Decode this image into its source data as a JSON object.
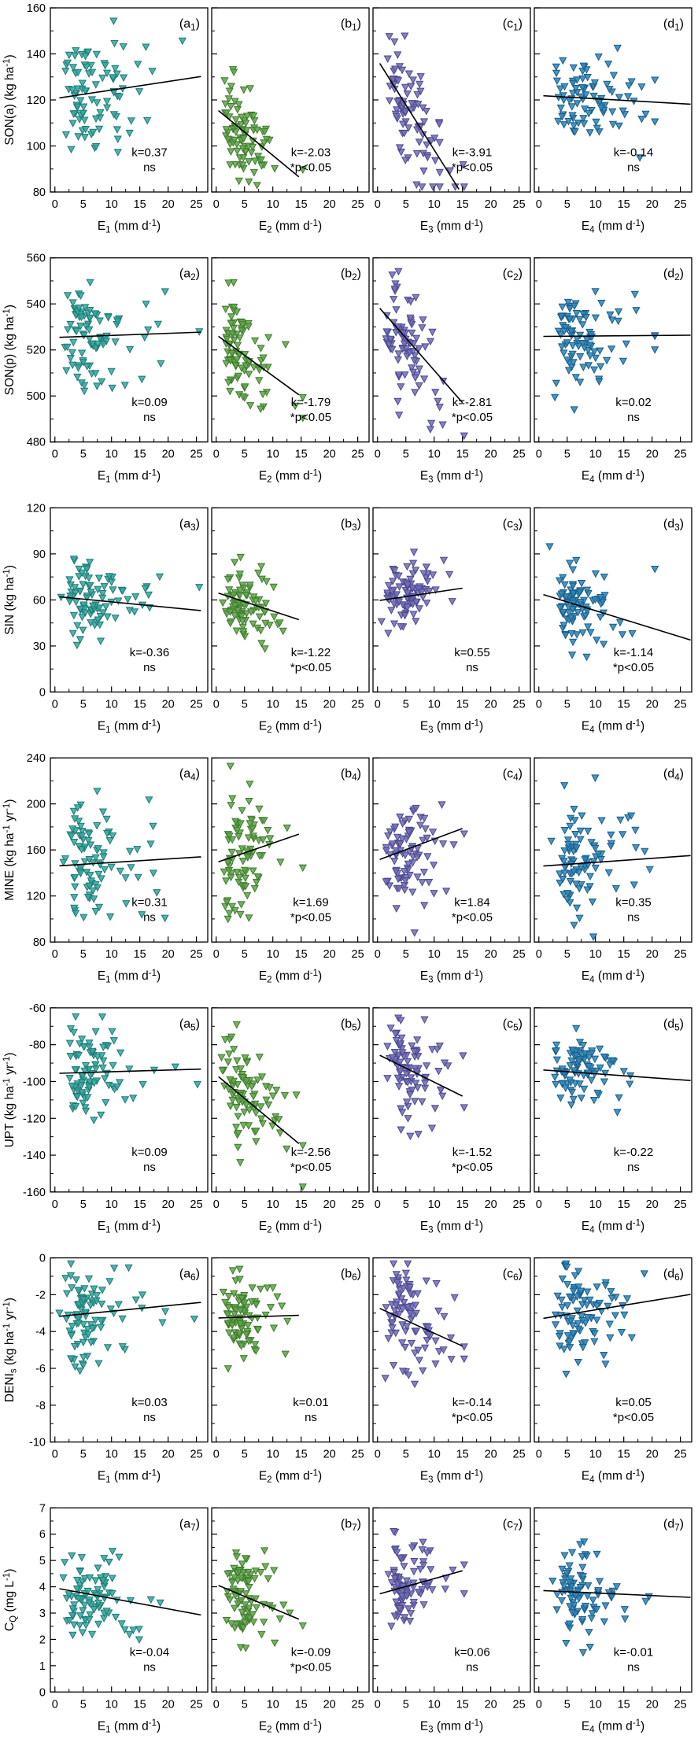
{
  "chart_data": {
    "type": "scatter",
    "description": "7x4 grid of scatter panels with downward-triangle markers and linear regression lines; slope k and significance shown per panel",
    "grid": {
      "rows": 7,
      "cols": 4
    },
    "x_axis": {
      "domain": [
        -0.8,
        27
      ],
      "ticks": [
        0,
        5,
        10,
        15,
        20,
        25
      ],
      "minor_step": 2.5
    },
    "columns": [
      {
        "key": "E1",
        "color": "#35a8a1",
        "edge": "#1f7a75",
        "xlabel": [
          {
            "t": "E"
          },
          {
            "t": "1",
            "s": "sub"
          },
          {
            "t": " (mm d"
          },
          {
            "t": "-1",
            "s": "sup"
          },
          {
            "t": ")"
          }
        ],
        "x_mu": 1.85,
        "x_sd": 0.55,
        "x_max": 25.5,
        "line_span": [
          0.8,
          25.8
        ]
      },
      {
        "key": "E2",
        "color": "#61a64b",
        "edge": "#3f7a2e",
        "xlabel": [
          {
            "t": "E"
          },
          {
            "t": "2",
            "s": "sub"
          },
          {
            "t": " (mm d"
          },
          {
            "t": "-1",
            "s": "sup"
          },
          {
            "t": ")"
          }
        ],
        "x_mu": 1.5,
        "x_sd": 0.5,
        "x_max": 15.3,
        "line_span": [
          0.4,
          14.6
        ]
      },
      {
        "key": "E3",
        "color": "#7370b7",
        "edge": "#4c4890",
        "xlabel": [
          {
            "t": "E"
          },
          {
            "t": "3",
            "s": "sub"
          },
          {
            "t": " (mm d"
          },
          {
            "t": "-1",
            "s": "sup"
          },
          {
            "t": ")"
          }
        ],
        "x_mu": 1.65,
        "x_sd": 0.5,
        "x_max": 15.3,
        "line_span": [
          0.4,
          15.0
        ]
      },
      {
        "key": "E4",
        "color": "#2f86bb",
        "edge": "#1b5c87",
        "xlabel": [
          {
            "t": "E"
          },
          {
            "t": "4",
            "s": "sub"
          },
          {
            "t": " (mm d"
          },
          {
            "t": "-1",
            "s": "sup"
          },
          {
            "t": ")"
          }
        ],
        "x_mu": 2.0,
        "x_sd": 0.45,
        "x_max": 20.5,
        "line_span": [
          0.8,
          26.8
        ]
      }
    ],
    "rows": [
      {
        "ylabel": [
          {
            "t": "SON(a) (kg ha"
          },
          {
            "t": "-1",
            "s": "sup"
          },
          {
            "t": ")"
          }
        ],
        "ylim": [
          80,
          160
        ],
        "yticks": [
          80,
          100,
          120,
          140,
          160
        ]
      },
      {
        "ylabel": [
          {
            "t": "SON(p) (kg ha"
          },
          {
            "t": "-1",
            "s": "sup"
          },
          {
            "t": ")"
          }
        ],
        "ylim": [
          480,
          560
        ],
        "yticks": [
          480,
          500,
          520,
          540,
          560
        ]
      },
      {
        "ylabel": [
          {
            "t": "SIN (kg ha"
          },
          {
            "t": "-1",
            "s": "sup"
          },
          {
            "t": ")"
          }
        ],
        "ylim": [
          0,
          120
        ],
        "yticks": [
          0,
          30,
          60,
          90,
          120
        ]
      },
      {
        "ylabel": [
          {
            "t": "MINE (kg ha"
          },
          {
            "t": "-1",
            "s": "sup"
          },
          {
            "t": " yr"
          },
          {
            "t": "-1",
            "s": "sup"
          },
          {
            "t": ")"
          }
        ],
        "ylim": [
          80,
          240
        ],
        "yticks": [
          80,
          120,
          160,
          200,
          240
        ]
      },
      {
        "ylabel": [
          {
            "t": "UPT (kg ha"
          },
          {
            "t": "-1",
            "s": "sup"
          },
          {
            "t": " yr"
          },
          {
            "t": "-1",
            "s": "sup"
          },
          {
            "t": ")"
          }
        ],
        "ylim": [
          -160,
          -60
        ],
        "yticks": [
          -160,
          -140,
          -120,
          -100,
          -80,
          -60
        ]
      },
      {
        "ylabel": [
          {
            "t": "DENI"
          },
          {
            "t": "s",
            "s": "sub"
          },
          {
            "t": " (kg ha"
          },
          {
            "t": "-1",
            "s": "sup"
          },
          {
            "t": " yr"
          },
          {
            "t": "-1",
            "s": "sup"
          },
          {
            "t": ")"
          }
        ],
        "ylim": [
          -10,
          0
        ],
        "yticks": [
          -10,
          -8,
          -6,
          -4,
          -2,
          0
        ]
      },
      {
        "ylabel": [
          {
            "t": "C"
          },
          {
            "t": "Q",
            "s": "sub"
          },
          {
            "t": " (mg L"
          },
          {
            "t": "-1",
            "s": "sup"
          },
          {
            "t": ")"
          }
        ],
        "ylim": [
          0,
          7
        ],
        "yticks": [
          0,
          1,
          2,
          3,
          4,
          5,
          6,
          7
        ]
      }
    ],
    "panels": [
      {
        "id": "a1",
        "row": 0,
        "col": 0,
        "k": 0.37,
        "k_text": "k=0.37",
        "sig": "ns",
        "y_center": 123,
        "y_sd": 12,
        "n": 90,
        "seed": 101
      },
      {
        "id": "b1",
        "row": 0,
        "col": 1,
        "k": -2.03,
        "k_text": "k=-2.03",
        "sig": "*p<0.05",
        "y_center": 103,
        "y_sd": 10,
        "n": 88,
        "seed": 102
      },
      {
        "id": "c1",
        "row": 0,
        "col": 2,
        "k": -3.91,
        "k_text": "k=-3.91",
        "sig": "*p<0.05",
        "y_center": 112,
        "y_sd": 11,
        "n": 88,
        "seed": 103
      },
      {
        "id": "d1",
        "row": 0,
        "col": 3,
        "k": -0.14,
        "k_text": "k=-0.14",
        "sig": "ns",
        "y_center": 121,
        "y_sd": 11,
        "n": 88,
        "seed": 104
      },
      {
        "id": "a2",
        "row": 1,
        "col": 0,
        "k": 0.09,
        "k_text": "k=0.09",
        "sig": "ns",
        "y_center": 526,
        "y_sd": 10,
        "n": 90,
        "seed": 105
      },
      {
        "id": "b2",
        "row": 1,
        "col": 1,
        "k": -1.79,
        "k_text": "k=-1.79",
        "sig": "*p<0.05",
        "y_center": 515,
        "y_sd": 10,
        "n": 88,
        "seed": 106
      },
      {
        "id": "c2",
        "row": 1,
        "col": 2,
        "k": -2.81,
        "k_text": "k=-2.81",
        "sig": "*p<0.05",
        "y_center": 521,
        "y_sd": 11,
        "n": 88,
        "seed": 107
      },
      {
        "id": "d2",
        "row": 1,
        "col": 3,
        "k": 0.02,
        "k_text": "k=0.02",
        "sig": "ns",
        "y_center": 526,
        "y_sd": 9,
        "n": 88,
        "seed": 108
      },
      {
        "id": "a3",
        "row": 2,
        "col": 0,
        "k": -0.36,
        "k_text": "k=-0.36",
        "sig": "ns",
        "y_center": 60,
        "y_sd": 12,
        "n": 90,
        "seed": 109
      },
      {
        "id": "b3",
        "row": 2,
        "col": 1,
        "k": -1.22,
        "k_text": "k=-1.22",
        "sig": "*p<0.05",
        "y_center": 57,
        "y_sd": 11,
        "n": 88,
        "seed": 110
      },
      {
        "id": "c3",
        "row": 2,
        "col": 2,
        "k": 0.55,
        "k_text": "k=0.55",
        "sig": "ns",
        "y_center": 63,
        "y_sd": 11,
        "n": 88,
        "seed": 111
      },
      {
        "id": "d3",
        "row": 2,
        "col": 3,
        "k": -1.14,
        "k_text": "k=-1.14",
        "sig": "*p<0.05",
        "y_center": 57,
        "y_sd": 13,
        "n": 88,
        "seed": 112
      },
      {
        "id": "a4",
        "row": 3,
        "col": 0,
        "k": 0.31,
        "k_text": "k=0.31",
        "sig": "ns",
        "y_center": 148,
        "y_sd": 25,
        "n": 90,
        "seed": 113
      },
      {
        "id": "b4",
        "row": 3,
        "col": 1,
        "k": 1.69,
        "k_text": "k=1.69",
        "sig": "*p<0.05",
        "y_center": 160,
        "y_sd": 26,
        "n": 88,
        "seed": 114
      },
      {
        "id": "c4",
        "row": 3,
        "col": 2,
        "k": 1.84,
        "k_text": "k=1.84",
        "sig": "*p<0.05",
        "y_center": 163,
        "y_sd": 24,
        "n": 88,
        "seed": 115
      },
      {
        "id": "d4",
        "row": 3,
        "col": 3,
        "k": 0.35,
        "k_text": "k=0.35",
        "sig": "ns",
        "y_center": 148,
        "y_sd": 26,
        "n": 88,
        "seed": 116
      },
      {
        "id": "a5",
        "row": 4,
        "col": 0,
        "k": 0.09,
        "k_text": "k=0.09",
        "sig": "ns",
        "y_center": -95,
        "y_sd": 12,
        "n": 90,
        "seed": 117
      },
      {
        "id": "b5",
        "row": 4,
        "col": 1,
        "k": -2.56,
        "k_text": "k=-2.56",
        "sig": "*p<0.05",
        "y_center": -113,
        "y_sd": 13,
        "n": 88,
        "seed": 118
      },
      {
        "id": "c5",
        "row": 4,
        "col": 2,
        "k": -1.52,
        "k_text": "k=-1.52",
        "sig": "*p<0.05",
        "y_center": -95,
        "y_sd": 12,
        "n": 88,
        "seed": 119
      },
      {
        "id": "d5",
        "row": 4,
        "col": 3,
        "k": -0.22,
        "k_text": "k=-0.22",
        "sig": "ns",
        "y_center": -95,
        "y_sd": 11,
        "n": 88,
        "seed": 120
      },
      {
        "id": "a6",
        "row": 5,
        "col": 0,
        "k": 0.03,
        "k_text": "k=0.03",
        "sig": "ns",
        "y_center": -3.0,
        "y_sd": 1.3,
        "n": 90,
        "seed": 121
      },
      {
        "id": "b6",
        "row": 5,
        "col": 1,
        "k": 0.01,
        "k_text": "k=0.01",
        "sig": "ns",
        "y_center": -3.2,
        "y_sd": 1.2,
        "n": 88,
        "seed": 122
      },
      {
        "id": "c6",
        "row": 5,
        "col": 2,
        "k": -0.14,
        "k_text": "k=-0.14",
        "sig": "*p<0.05",
        "y_center": -3.6,
        "y_sd": 1.5,
        "n": 88,
        "seed": 123
      },
      {
        "id": "d6",
        "row": 5,
        "col": 3,
        "k": 0.05,
        "k_text": "k=0.05",
        "sig": "*p<0.05",
        "y_center": -3.0,
        "y_sd": 1.3,
        "n": 88,
        "seed": 124
      },
      {
        "id": "a7",
        "row": 6,
        "col": 0,
        "k": -0.04,
        "k_text": "k=-0.04",
        "sig": "ns",
        "y_center": 3.7,
        "y_sd": 0.85,
        "n": 90,
        "seed": 125
      },
      {
        "id": "b7",
        "row": 6,
        "col": 1,
        "k": -0.09,
        "k_text": "k=-0.09",
        "sig": "*p<0.05",
        "y_center": 3.5,
        "y_sd": 0.8,
        "n": 88,
        "seed": 126
      },
      {
        "id": "c7",
        "row": 6,
        "col": 2,
        "k": 0.06,
        "k_text": "k=0.06",
        "sig": "ns",
        "y_center": 4.1,
        "y_sd": 0.8,
        "n": 88,
        "seed": 127
      },
      {
        "id": "d7",
        "row": 6,
        "col": 3,
        "k": -0.01,
        "k_text": "k=-0.01",
        "sig": "ns",
        "y_center": 3.8,
        "y_sd": 0.75,
        "n": 88,
        "seed": 128
      }
    ],
    "notes": "Individual scatter points are visually estimated clouds; y_center/y_sd/x_mu/x_sd summarize the point distributions read from the figure."
  }
}
